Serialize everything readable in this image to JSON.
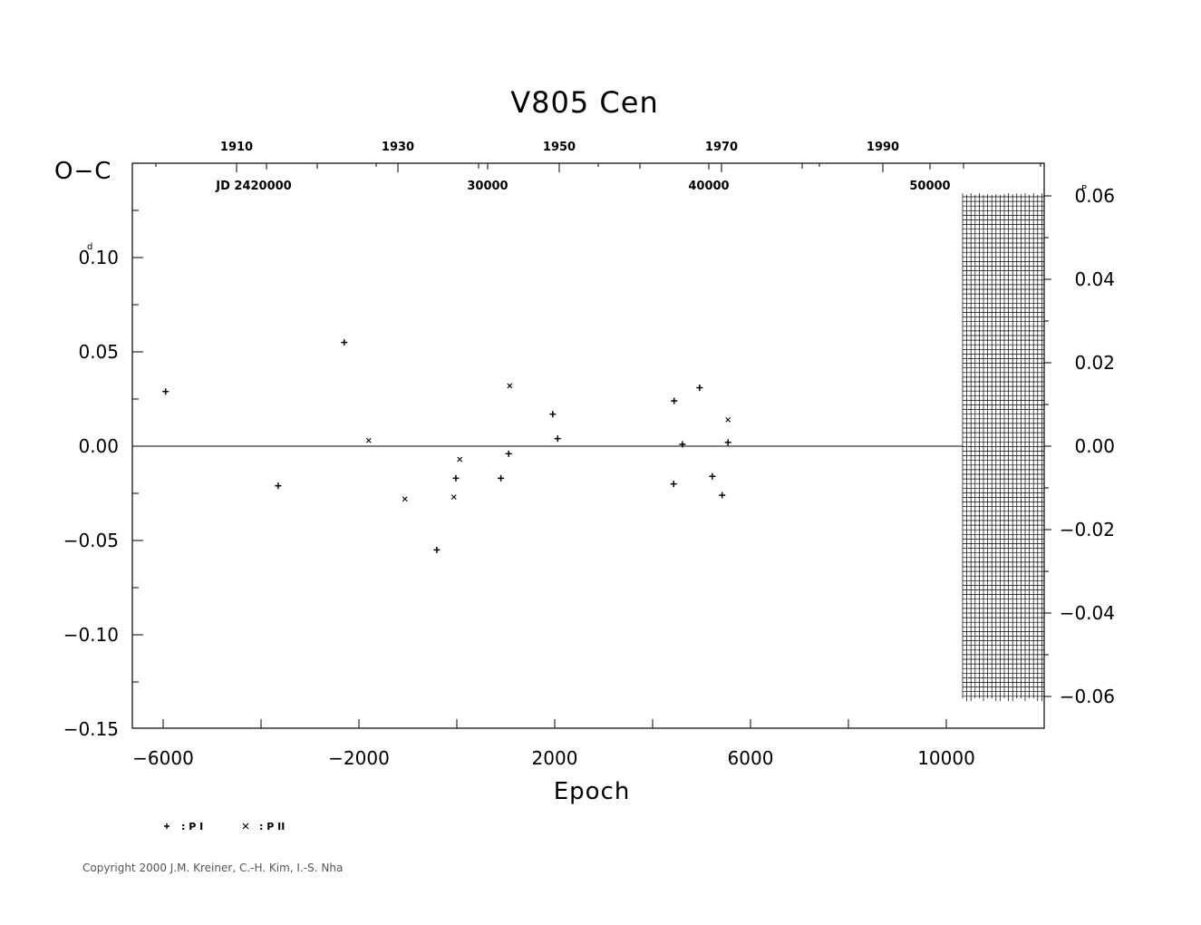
{
  "chart_data": {
    "type": "scatter",
    "title": "V805  Cen",
    "ylabel": "O−C",
    "xlabel": "Epoch",
    "y_unit_left": "d",
    "y_unit_right": "P",
    "xlim": [
      -6500,
      12000
    ],
    "ylim": [
      -0.15,
      0.15
    ],
    "x_ticks": [
      -6000,
      -2000,
      2000,
      6000,
      10000
    ],
    "x_tick_labels": [
      "−6000",
      "−2000",
      "2000",
      "6000",
      "10000"
    ],
    "y_ticks": [
      0.1,
      0.05,
      0.0,
      -0.05,
      -0.1,
      -0.15
    ],
    "y_tick_labels": [
      "0.10",
      "0.05",
      "0.00",
      "−0.05",
      "−0.10",
      "−0.15"
    ],
    "right_ticks": [
      0.06,
      0.04,
      0.02,
      0.0,
      -0.02,
      -0.04,
      -0.06
    ],
    "right_tick_labels": [
      "0.06",
      "0.04",
      "0.02",
      "0.00",
      "−0.02",
      "−0.04",
      "−0.06"
    ],
    "year_labels": [
      "1910",
      "1930",
      "1950",
      "1970",
      "1990"
    ],
    "jd_labels": [
      "JD  2420000",
      "30000",
      "40000",
      "50000"
    ],
    "hatch_region_x": [
      10350,
      12000
    ],
    "zero_line": true,
    "series": [
      {
        "name": "P I",
        "marker": "plus",
        "points": [
          [
            -5950,
            0.029
          ],
          [
            -3650,
            -0.021
          ],
          [
            -2300,
            0.055
          ],
          [
            -410,
            -0.055
          ],
          [
            -20,
            -0.017
          ],
          [
            900,
            -0.017
          ],
          [
            1060,
            -0.004
          ],
          [
            2060,
            0.004
          ],
          [
            4440,
            0.024
          ],
          [
            4430,
            -0.02
          ],
          [
            4610,
            0.001
          ],
          [
            5220,
            -0.016
          ],
          [
            5420,
            -0.026
          ],
          [
            5540,
            0.002
          ],
          [
            4960,
            0.031
          ],
          [
            1960,
            0.017
          ]
        ]
      },
      {
        "name": "P II",
        "marker": "cross",
        "points": [
          [
            -1800,
            0.003
          ],
          [
            -1060,
            -0.028
          ],
          [
            -60,
            -0.027
          ],
          [
            60,
            -0.007
          ],
          [
            1080,
            0.032
          ],
          [
            5540,
            0.014
          ]
        ]
      }
    ],
    "legend": [
      {
        "symbol": "+",
        "label": ":  P  I"
      },
      {
        "symbol": "×",
        "label": ":  P  II"
      }
    ]
  },
  "copyright": "Copyright 2000 J.M. Kreiner, C.-H. Kim, I.-S. Nha"
}
